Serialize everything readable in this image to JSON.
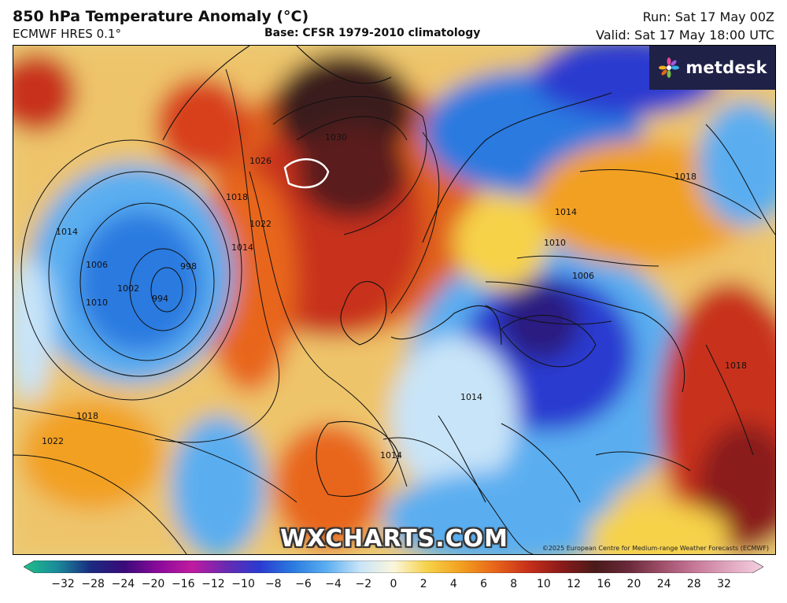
{
  "header": {
    "title": "850 hPa Temperature Anomaly (°C)",
    "model": "ECMWF HRES 0.1°",
    "base": "Base: CFSR 1979-2010 climatology",
    "run": "Run: Sat 17 May 00Z",
    "valid": "Valid: Sat 17 May 18:00 UTC"
  },
  "logo": {
    "text": "metdesk",
    "icon": "flower-logo-icon"
  },
  "watermark": "WXCHARTS.COM",
  "copyright": "©2025 European Centre for Medium-range Weather Forecasts (ECMWF)",
  "isobar_labels": [
    "998",
    "1002",
    "1006",
    "1014",
    "1010",
    "994",
    "1018",
    "1022",
    "1030",
    "1026",
    "1006",
    "1014",
    "1018",
    "1010",
    "1014",
    "1022",
    "1018",
    "1014",
    "1014",
    "1018"
  ],
  "colorbar": {
    "labels": [
      "−32",
      "−28",
      "−24",
      "−20",
      "−16",
      "−12",
      "−10",
      "−8",
      "−6",
      "−4",
      "−2",
      "0",
      "2",
      "4",
      "6",
      "8",
      "10",
      "12",
      "16",
      "20",
      "24",
      "28",
      "32"
    ],
    "colors": [
      "#1fc08a",
      "#1a8a9a",
      "#1a2a80",
      "#3a0a7a",
      "#8a0a9a",
      "#c01aa0",
      "#6a2ab0",
      "#2a3ad0",
      "#2a7ae0",
      "#5aaef0",
      "#c8e4f8",
      "#fbf6dc",
      "#f6d24a",
      "#f2a020",
      "#e8661a",
      "#c8301a",
      "#8a1a1a",
      "#4a1a1a",
      "#6a2a3a",
      "#a0506a",
      "#c87a9a",
      "#e0a8c0",
      "#f5d0e0"
    ]
  }
}
